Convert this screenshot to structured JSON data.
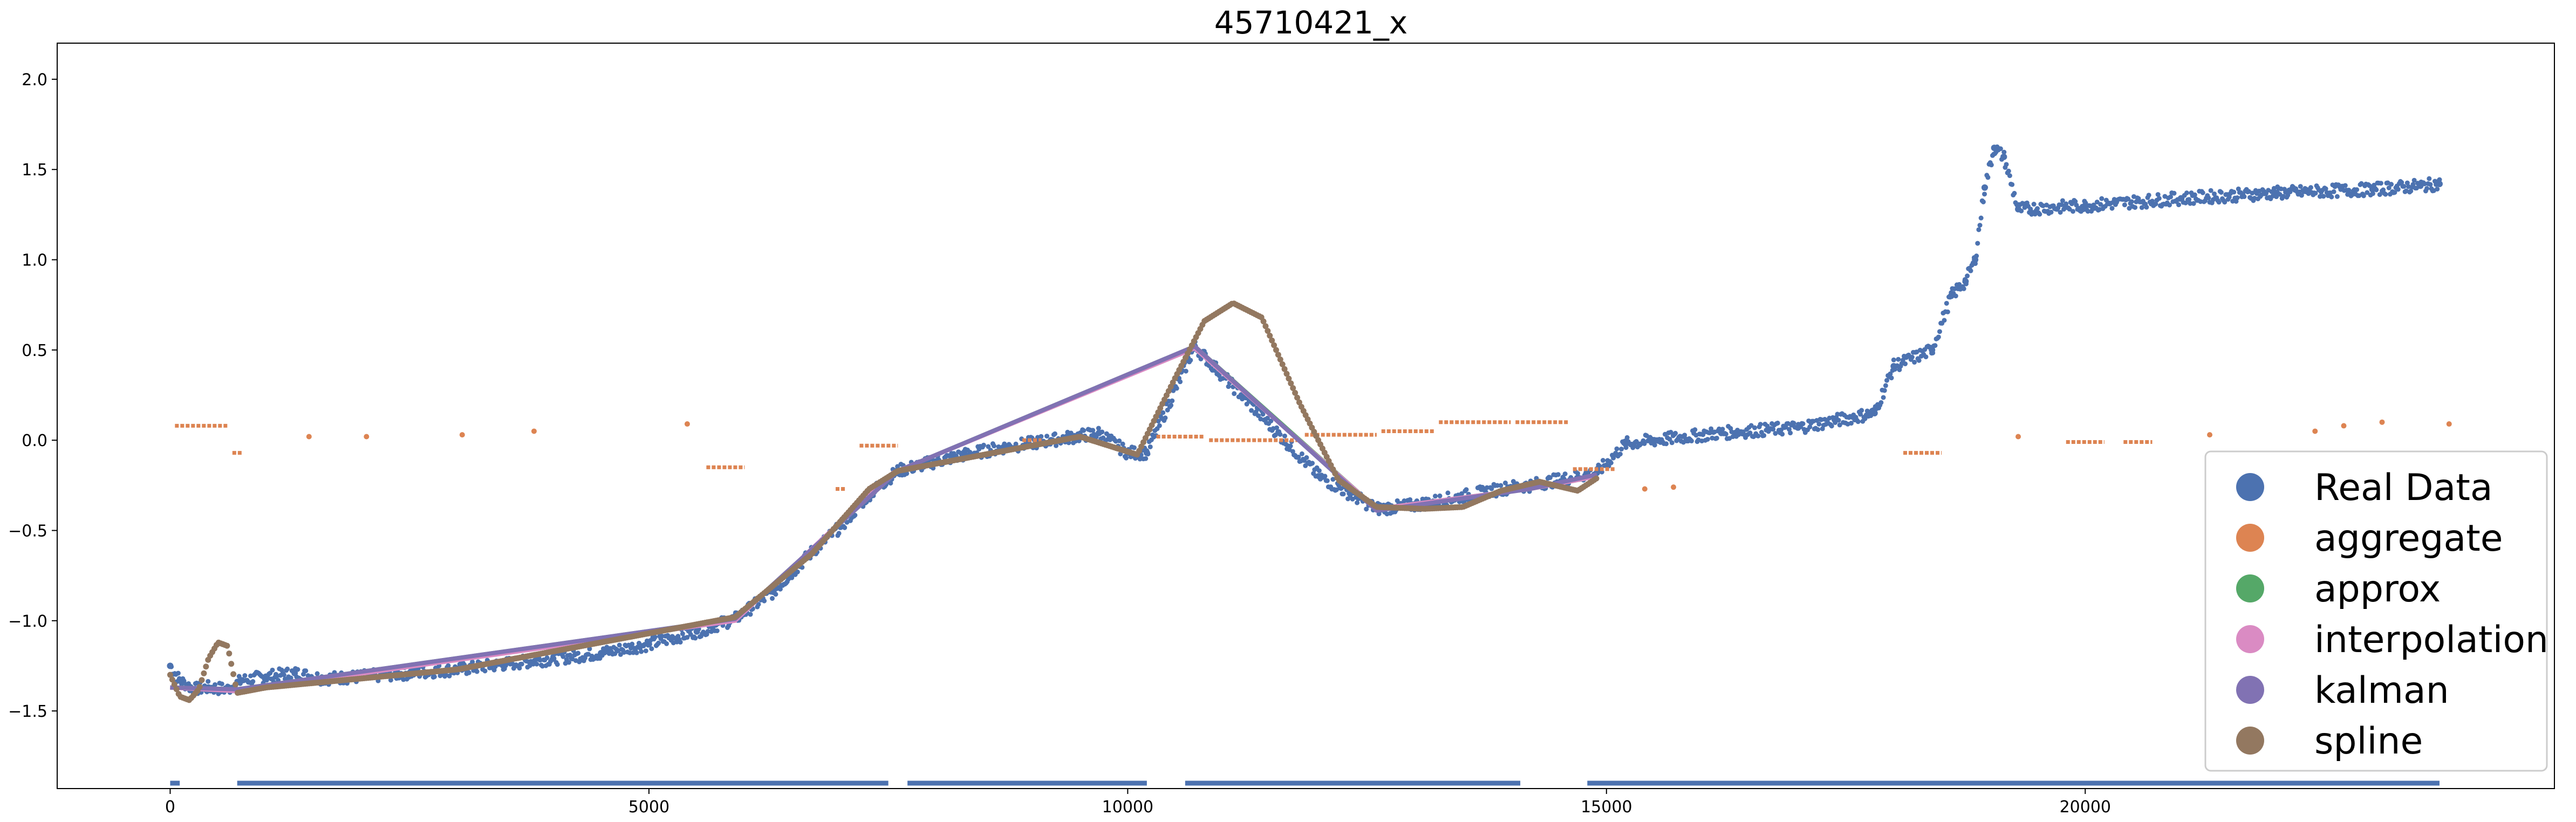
{
  "chart_data": {
    "type": "scatter",
    "title": "45710421_x",
    "xlabel": "",
    "ylabel": "",
    "xlim": [
      -1180,
      24900
    ],
    "ylim": [
      -1.93,
      2.2
    ],
    "x_ticks": [
      {
        "value": 0,
        "label": "0"
      },
      {
        "value": 5000,
        "label": "5000"
      },
      {
        "value": 10000,
        "label": "10000"
      },
      {
        "value": 15000,
        "label": "15000"
      },
      {
        "value": 20000,
        "label": "20000"
      }
    ],
    "y_ticks": [
      {
        "value": -1.5,
        "label": "−1.5"
      },
      {
        "value": -1.0,
        "label": "−1.0"
      },
      {
        "value": -0.5,
        "label": "−0.5"
      },
      {
        "value": 0.0,
        "label": "0.0"
      },
      {
        "value": 0.5,
        "label": "0.5"
      },
      {
        "value": 1.0,
        "label": "1.0"
      },
      {
        "value": 1.5,
        "label": "1.5"
      },
      {
        "value": 2.0,
        "label": "2.0"
      }
    ],
    "grid": false,
    "legend_position": "lower-right",
    "series": [
      {
        "name": "Real Data",
        "color": "#4c72b0",
        "style": "dense-scatter",
        "points": [
          [
            0,
            -1.25
          ],
          [
            100,
            -1.33
          ],
          [
            250,
            -1.38
          ],
          [
            400,
            -1.37
          ],
          [
            600,
            -1.38
          ],
          [
            750,
            -1.33
          ],
          [
            1000,
            -1.31
          ],
          [
            1300,
            -1.29
          ],
          [
            1600,
            -1.32
          ],
          [
            2000,
            -1.31
          ],
          [
            2500,
            -1.29
          ],
          [
            3000,
            -1.27
          ],
          [
            3500,
            -1.24
          ],
          [
            4000,
            -1.21
          ],
          [
            4500,
            -1.18
          ],
          [
            5000,
            -1.13
          ],
          [
            5500,
            -1.06
          ],
          [
            5900,
            -0.99
          ],
          [
            6300,
            -0.84
          ],
          [
            6700,
            -0.62
          ],
          [
            7000,
            -0.48
          ],
          [
            7300,
            -0.3
          ],
          [
            7600,
            -0.17
          ],
          [
            7900,
            -0.13
          ],
          [
            8300,
            -0.08
          ],
          [
            8700,
            -0.04
          ],
          [
            9200,
            0.0
          ],
          [
            9700,
            0.04
          ],
          [
            10000,
            -0.07
          ],
          [
            10200,
            -0.07
          ],
          [
            10700,
            0.52
          ],
          [
            12000,
            -0.2
          ],
          [
            12600,
            -0.38
          ],
          [
            13000,
            -0.36
          ],
          [
            14000,
            -0.26
          ],
          [
            14200,
            -0.25
          ],
          [
            14900,
            -0.18
          ],
          [
            15200,
            -0.02
          ],
          [
            15500,
            0.0
          ],
          [
            16200,
            0.04
          ],
          [
            17000,
            0.07
          ],
          [
            17800,
            0.15
          ],
          [
            18000,
            0.41
          ],
          [
            18400,
            0.5
          ],
          [
            18600,
            0.8
          ],
          [
            18750,
            0.88
          ],
          [
            18850,
            1.0
          ],
          [
            18950,
            1.4
          ],
          [
            19050,
            1.62
          ],
          [
            19150,
            1.57
          ],
          [
            19300,
            1.28
          ],
          [
            20000,
            1.3
          ],
          [
            21000,
            1.34
          ],
          [
            22000,
            1.37
          ],
          [
            23000,
            1.39
          ],
          [
            23500,
            1.41
          ],
          [
            23700,
            1.42
          ]
        ]
      },
      {
        "name": "aggregate",
        "color": "#dd8452",
        "style": "segments",
        "segments": [
          [
            [
              50,
              0.08
            ],
            [
              600,
              0.08
            ]
          ],
          [
            [
              650,
              -0.07
            ],
            [
              750,
              -0.07
            ]
          ],
          [
            [
              5600,
              -0.15
            ],
            [
              6000,
              -0.15
            ]
          ],
          [
            [
              6950,
              -0.27
            ],
            [
              7050,
              -0.27
            ]
          ],
          [
            [
              7200,
              -0.03
            ],
            [
              7600,
              -0.03
            ]
          ],
          [
            [
              8900,
              0.0
            ],
            [
              9100,
              0.0
            ]
          ],
          [
            [
              10300,
              0.02
            ],
            [
              10800,
              0.02
            ]
          ],
          [
            [
              10850,
              0.0
            ],
            [
              11800,
              0.0
            ]
          ],
          [
            [
              11850,
              0.03
            ],
            [
              12600,
              0.03
            ]
          ],
          [
            [
              12650,
              0.05
            ],
            [
              13200,
              0.05
            ]
          ],
          [
            [
              13250,
              0.1
            ],
            [
              14000,
              0.1
            ]
          ],
          [
            [
              14050,
              0.1
            ],
            [
              14600,
              0.1
            ]
          ],
          [
            [
              14650,
              -0.16
            ],
            [
              15100,
              -0.16
            ]
          ],
          [
            [
              18100,
              -0.07
            ],
            [
              18500,
              -0.07
            ]
          ],
          [
            [
              19800,
              -0.01
            ],
            [
              20200,
              -0.01
            ]
          ],
          [
            [
              20400,
              -0.01
            ],
            [
              20700,
              -0.01
            ]
          ]
        ],
        "points": [
          [
            1450,
            0.02
          ],
          [
            2050,
            0.02
          ],
          [
            3050,
            0.03
          ],
          [
            3800,
            0.05
          ],
          [
            5400,
            0.09
          ],
          [
            15400,
            -0.27
          ],
          [
            15700,
            -0.26
          ],
          [
            19300,
            0.02
          ],
          [
            21300,
            0.03
          ],
          [
            22400,
            0.05
          ],
          [
            22700,
            0.08
          ],
          [
            23100,
            0.1
          ],
          [
            23800,
            0.09
          ]
        ]
      },
      {
        "name": "approx",
        "color": "#55a868",
        "style": "line",
        "points": [
          [
            0,
            -1.37
          ],
          [
            700,
            -1.38
          ],
          [
            5900,
            -0.99
          ],
          [
            7600,
            -0.17
          ],
          [
            10700,
            0.52
          ],
          [
            12600,
            -0.38
          ],
          [
            14200,
            -0.27
          ],
          [
            14900,
            -0.2
          ]
        ]
      },
      {
        "name": "interpolation",
        "color": "#da8bc3",
        "style": "line",
        "points": [
          [
            0,
            -1.37
          ],
          [
            700,
            -1.39
          ],
          [
            5900,
            -1.0
          ],
          [
            7550,
            -0.18
          ],
          [
            10700,
            0.51
          ],
          [
            12600,
            -0.38
          ],
          [
            14200,
            -0.27
          ],
          [
            14900,
            -0.2
          ]
        ]
      },
      {
        "name": "kalman",
        "color": "#8172b3",
        "style": "line",
        "points": [
          [
            0,
            -1.37
          ],
          [
            700,
            -1.38
          ],
          [
            5900,
            -0.99
          ],
          [
            7600,
            -0.17
          ],
          [
            10700,
            0.52
          ],
          [
            12600,
            -0.39
          ],
          [
            14200,
            -0.27
          ],
          [
            14900,
            -0.19
          ]
        ]
      },
      {
        "name": "spline",
        "color": "#937860",
        "style": "dotted-curve",
        "points": [
          [
            0,
            -1.3
          ],
          [
            100,
            -1.42
          ],
          [
            200,
            -1.44
          ],
          [
            300,
            -1.38
          ],
          [
            400,
            -1.21
          ],
          [
            500,
            -1.12
          ],
          [
            600,
            -1.14
          ],
          [
            700,
            -1.4
          ],
          [
            1000,
            -1.37
          ],
          [
            3000,
            -1.27
          ],
          [
            5900,
            -0.98
          ],
          [
            6700,
            -0.63
          ],
          [
            7300,
            -0.27
          ],
          [
            7600,
            -0.17
          ],
          [
            9500,
            0.02
          ],
          [
            10100,
            -0.08
          ],
          [
            10500,
            0.35
          ],
          [
            10800,
            0.66
          ],
          [
            11100,
            0.76
          ],
          [
            11400,
            0.68
          ],
          [
            11800,
            0.2
          ],
          [
            12200,
            -0.22
          ],
          [
            12600,
            -0.37
          ],
          [
            13100,
            -0.38
          ],
          [
            13500,
            -0.37
          ],
          [
            13900,
            -0.28
          ],
          [
            14300,
            -0.23
          ],
          [
            14700,
            -0.28
          ],
          [
            14900,
            -0.21
          ]
        ]
      }
    ]
  }
}
